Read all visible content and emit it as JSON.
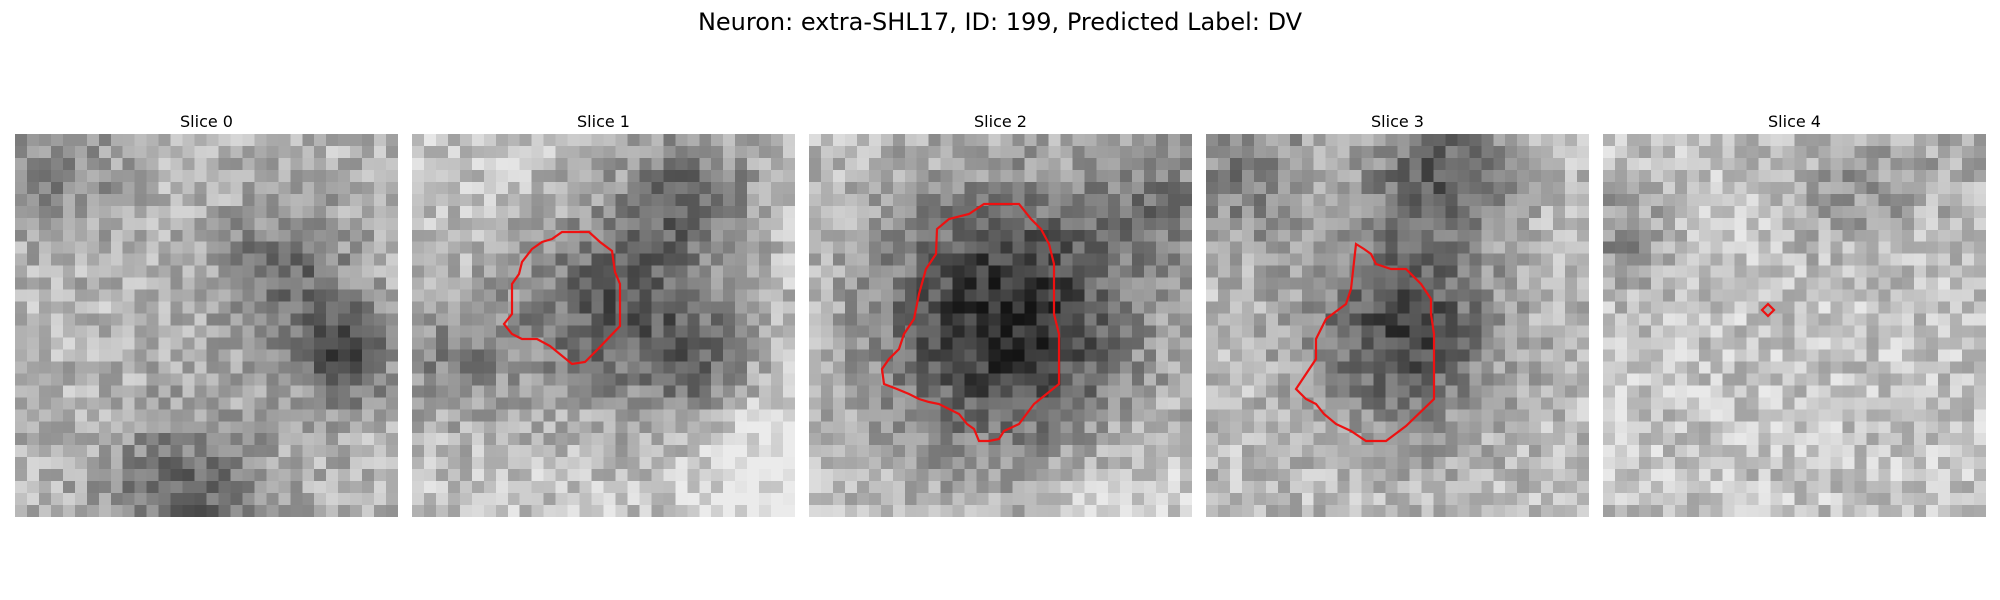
{
  "figure": {
    "title": "Neuron: extra-SHL17, ID: 199, Predicted Label: DV"
  },
  "slices": [
    {
      "title": "Slice 0",
      "has_contour": false
    },
    {
      "title": "Slice 1",
      "has_contour": true
    },
    {
      "title": "Slice 2",
      "has_contour": true
    },
    {
      "title": "Slice 3",
      "has_contour": true
    },
    {
      "title": "Slice 4",
      "has_contour": true
    }
  ],
  "style": {
    "contour_color": "#ee1111",
    "colormap": "grayscale"
  }
}
